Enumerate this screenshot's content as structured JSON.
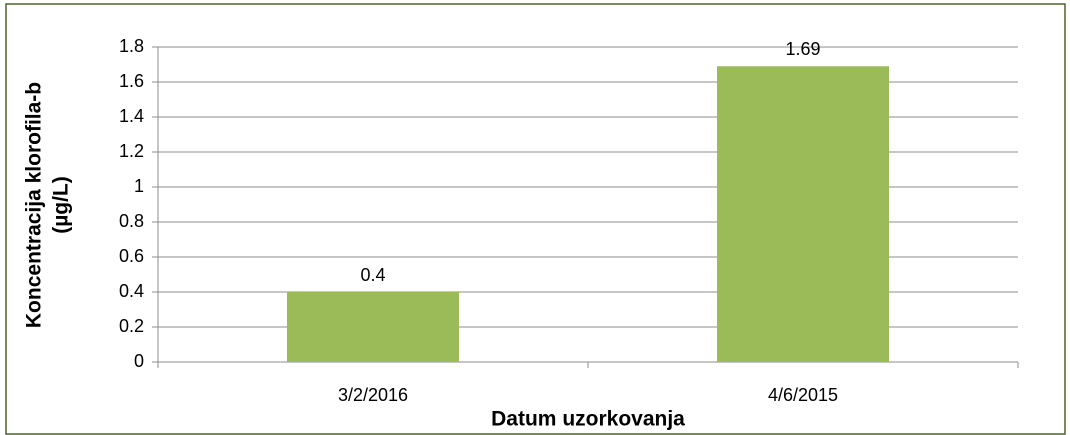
{
  "chart_data": {
    "type": "bar",
    "categories": [
      "3/2/2016",
      "4/6/2015"
    ],
    "values": [
      0.4,
      1.69
    ],
    "color": "#9bbb59",
    "xlabel": "Datum uzorkovanja",
    "ylabel": [
      "Koncentracija klorofila-b",
      "(µg/L)"
    ],
    "ylim": [
      0,
      1.8
    ],
    "yticks": [
      0,
      0.2,
      0.4,
      0.6,
      0.8,
      1,
      1.2,
      1.4,
      1.6,
      1.8
    ],
    "grid": true
  }
}
